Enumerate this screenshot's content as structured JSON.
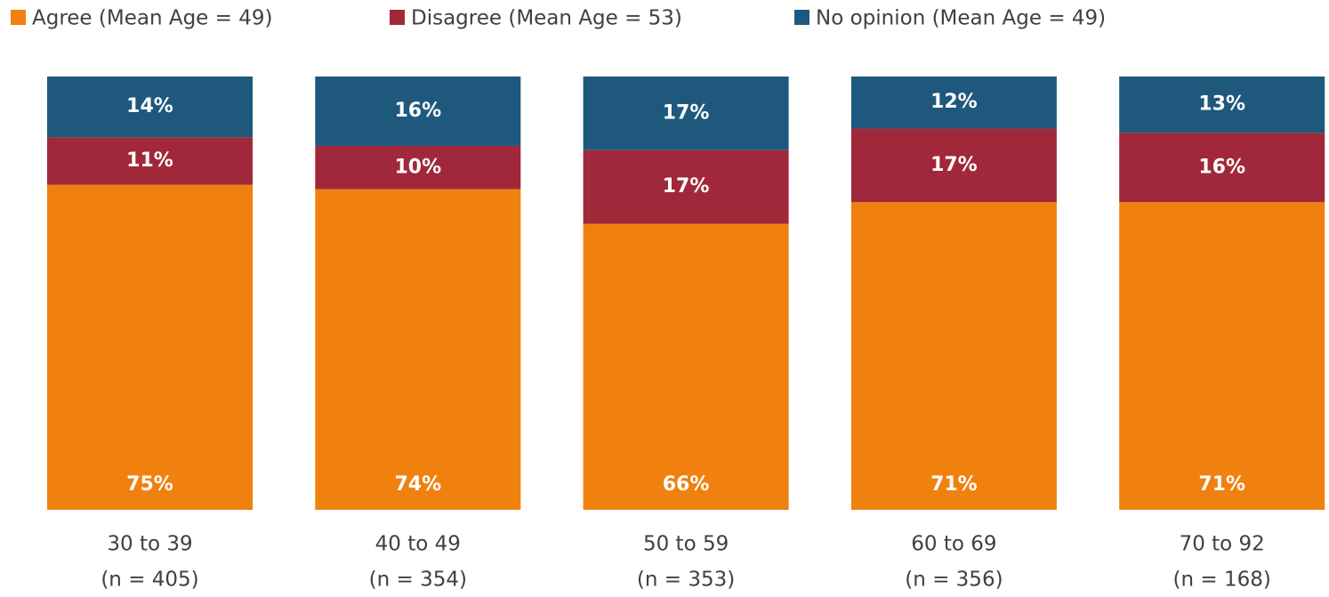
{
  "chart_data": {
    "type": "stacked_bar",
    "categories": [
      [
        "30 to 39",
        "(n = 405)"
      ],
      [
        "40 to 49",
        "(n = 354)"
      ],
      [
        "50 to 59",
        "(n = 353)"
      ],
      [
        "60 to 69",
        "(n = 356)"
      ],
      [
        "70 to 92",
        "(n = 168)"
      ]
    ],
    "series": [
      {
        "name": "Agree (Mean Age = 49)",
        "color": "#f0810f",
        "values": [
          75,
          74,
          66,
          71,
          71
        ],
        "value_labels": [
          "75%",
          "74%",
          "66%",
          "71%",
          "71%"
        ]
      },
      {
        "name": "Disagree (Mean Age = 53)",
        "color": "#a0283a",
        "values": [
          11,
          10,
          17,
          17,
          16
        ],
        "value_labels": [
          "11%",
          "10%",
          "17%",
          "17%",
          "16%"
        ]
      },
      {
        "name": "No opinion (Mean Age = 49)",
        "color": "#1f587d",
        "values": [
          14,
          16,
          17,
          12,
          13
        ],
        "value_labels": [
          "14%",
          "16%",
          "17%",
          "12%",
          "13%"
        ]
      }
    ],
    "ylim": [
      0,
      100
    ],
    "legend": "top"
  }
}
